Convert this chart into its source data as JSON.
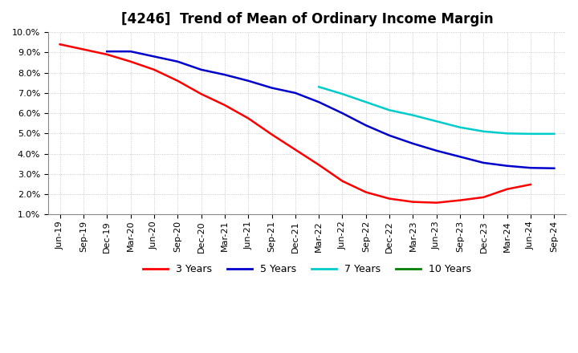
{
  "title": "[4246]  Trend of Mean of Ordinary Income Margin",
  "x_labels": [
    "Jun-19",
    "Sep-19",
    "Dec-19",
    "Mar-20",
    "Jun-20",
    "Sep-20",
    "Dec-20",
    "Mar-21",
    "Jun-21",
    "Sep-21",
    "Dec-21",
    "Mar-22",
    "Jun-22",
    "Sep-22",
    "Dec-22",
    "Mar-23",
    "Jun-23",
    "Sep-23",
    "Dec-23",
    "Mar-24",
    "Jun-24",
    "Sep-24"
  ],
  "ylim": [
    0.01,
    0.1
  ],
  "yticks": [
    0.01,
    0.02,
    0.03,
    0.04,
    0.05,
    0.06,
    0.07,
    0.08,
    0.09,
    0.1
  ],
  "series": {
    "3 Years": {
      "color": "#FF0000",
      "data_x": [
        0,
        1,
        2,
        3,
        4,
        5,
        6,
        7,
        8,
        9,
        10,
        11,
        12,
        13,
        14,
        15,
        16,
        17,
        18,
        19,
        20
      ],
      "data_y": [
        0.094,
        0.0915,
        0.089,
        0.0855,
        0.0815,
        0.076,
        0.0695,
        0.064,
        0.0575,
        0.0495,
        0.042,
        0.0345,
        0.0265,
        0.021,
        0.0178,
        0.0162,
        0.0158,
        0.017,
        0.0185,
        0.0225,
        0.0248
      ]
    },
    "5 Years": {
      "color": "#0000CC",
      "data_x": [
        2,
        3,
        4,
        5,
        6,
        7,
        8,
        9,
        10,
        11,
        12,
        13,
        14,
        15,
        16,
        17,
        18,
        19,
        20,
        21
      ],
      "data_y": [
        0.0905,
        0.0905,
        0.088,
        0.0855,
        0.0815,
        0.079,
        0.076,
        0.0725,
        0.07,
        0.0655,
        0.06,
        0.054,
        0.049,
        0.045,
        0.0415,
        0.0385,
        0.0355,
        0.034,
        0.033,
        0.0328
      ]
    },
    "7 Years": {
      "color": "#00CCCC",
      "data_x": [
        11,
        12,
        13,
        14,
        15,
        16,
        17,
        18,
        19,
        20,
        21
      ],
      "data_y": [
        0.073,
        0.0695,
        0.0655,
        0.0615,
        0.059,
        0.056,
        0.053,
        0.051,
        0.05,
        0.0498,
        0.0498
      ]
    },
    "10 Years": {
      "color": "#008000",
      "data_x": [],
      "data_y": []
    }
  },
  "legend_order": [
    "3 Years",
    "5 Years",
    "7 Years",
    "10 Years"
  ],
  "background_color": "#FFFFFF",
  "grid_color": "#AAAAAA",
  "title_fontsize": 12,
  "tick_fontsize": 8,
  "legend_fontsize": 9
}
